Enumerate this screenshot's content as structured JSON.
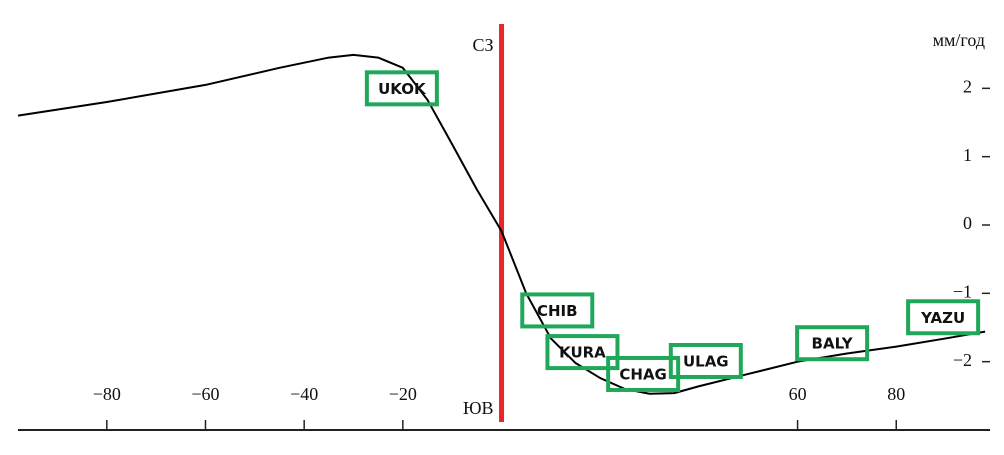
{
  "chart_data": {
    "type": "line",
    "y_label": "мм/год",
    "divider": {
      "x": 0,
      "top_label": "СЗ",
      "bottom_label": "ЮВ",
      "color": "#e8262a"
    },
    "x": [
      -98,
      -80,
      -60,
      -45,
      -35,
      -30,
      -25,
      -20,
      -15,
      -10,
      -5,
      0,
      5,
      10,
      15,
      20,
      25,
      30,
      35,
      40,
      50,
      60,
      70,
      80,
      90,
      98
    ],
    "series": [
      {
        "color": "#000000",
        "values": [
          1.6,
          1.8,
          2.05,
          2.3,
          2.45,
          2.49,
          2.45,
          2.3,
          1.83,
          1.18,
          0.52,
          -0.09,
          -1.0,
          -1.66,
          -2.02,
          -2.24,
          -2.4,
          -2.47,
          -2.46,
          -2.36,
          -2.18,
          -2.0,
          -1.88,
          -1.78,
          -1.66,
          -1.56
        ]
      }
    ],
    "stations": [
      {
        "label": "UKOK",
        "x": -20.2,
        "y": 2.0
      },
      {
        "label": "CHIB",
        "x": 11.3,
        "y": -1.25
      },
      {
        "label": "KURA",
        "x": 16.4,
        "y": -1.86
      },
      {
        "label": "CHAG",
        "x": 28.7,
        "y": -2.18
      },
      {
        "label": "ULAG",
        "x": 41.4,
        "y": -1.99
      },
      {
        "label": "BALY",
        "x": 67,
        "y": -1.73
      },
      {
        "label": "YAZU",
        "x": 89.5,
        "y": -1.35
      }
    ],
    "station_color": "#1fa85a",
    "xlim": [
      -98,
      99
    ],
    "ylim": [
      -3,
      3
    ],
    "xticks": [
      {
        "value": -80,
        "label": "−80"
      },
      {
        "value": -60,
        "label": "−60"
      },
      {
        "value": -40,
        "label": "−40"
      },
      {
        "value": -20,
        "label": "−20"
      },
      60,
      80
    ],
    "yticks": [
      2,
      1,
      0,
      {
        "value": -1,
        "label": "−1"
      },
      {
        "value": -2,
        "label": "−2"
      }
    ]
  }
}
